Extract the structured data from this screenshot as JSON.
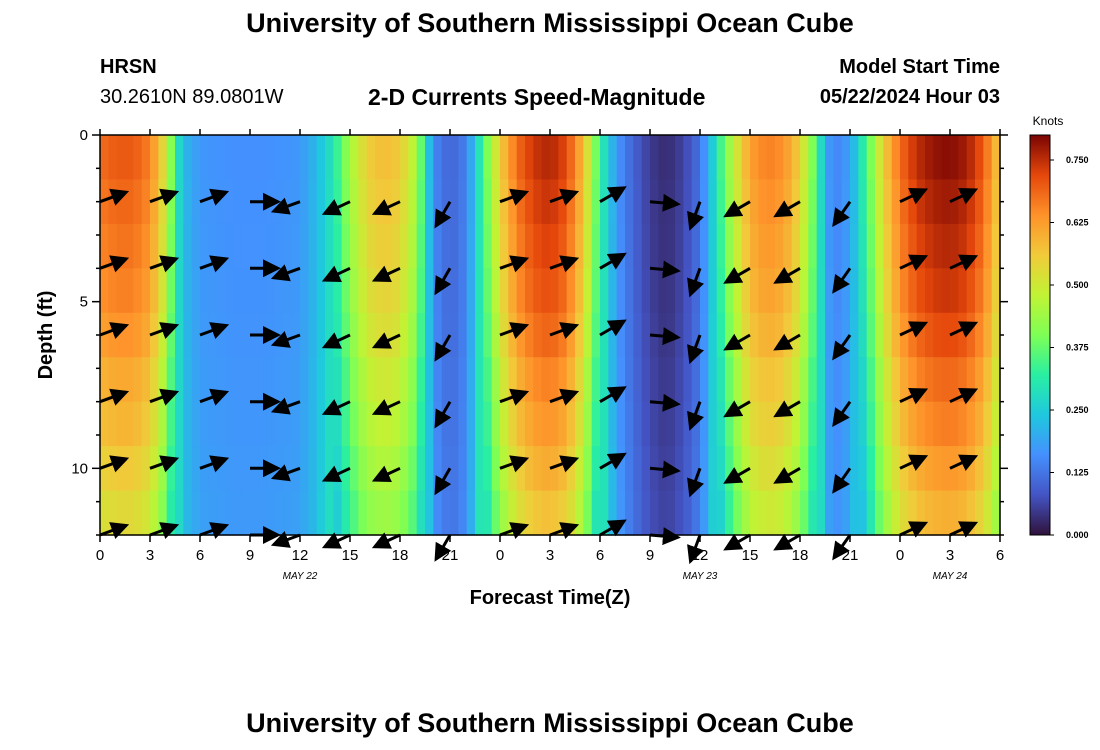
{
  "header": {
    "title": "University of Southern Mississippi Ocean Cube",
    "station": "HRSN",
    "coords": "30.2610N  89.0801W",
    "model_start_label": "Model Start Time",
    "model_start_value": "05/22/2024 Hour 03"
  },
  "footer": {
    "title": "University of Southern Mississippi Ocean Cube"
  },
  "chart_data": {
    "type": "heatmap",
    "title": "2-D Currents Speed-Magnitude",
    "xlabel": "Forecast Time(Z)",
    "ylabel": "Depth (ft)",
    "x_range_hours": [
      0,
      54
    ],
    "ylim": [
      0,
      12
    ],
    "x_ticks": [
      {
        "h": 0,
        "label": "0"
      },
      {
        "h": 3,
        "label": "3"
      },
      {
        "h": 6,
        "label": "6"
      },
      {
        "h": 9,
        "label": "9"
      },
      {
        "h": 12,
        "label": "12"
      },
      {
        "h": 15,
        "label": "15"
      },
      {
        "h": 18,
        "label": "18"
      },
      {
        "h": 21,
        "label": "21"
      },
      {
        "h": 24,
        "label": "0"
      },
      {
        "h": 27,
        "label": "3"
      },
      {
        "h": 30,
        "label": "6"
      },
      {
        "h": 33,
        "label": "9"
      },
      {
        "h": 36,
        "label": "12"
      },
      {
        "h": 39,
        "label": "15"
      },
      {
        "h": 42,
        "label": "18"
      },
      {
        "h": 45,
        "label": "21"
      },
      {
        "h": 48,
        "label": "0"
      },
      {
        "h": 51,
        "label": "3"
      },
      {
        "h": 54,
        "label": "6"
      }
    ],
    "date_labels": [
      {
        "h": 12,
        "label": "MAY 22"
      },
      {
        "h": 36,
        "label": "MAY 23"
      },
      {
        "h": 51,
        "label": "MAY 24"
      }
    ],
    "y_ticks": [
      {
        "v": 0,
        "label": "0"
      },
      {
        "v": 5,
        "label": "5"
      },
      {
        "v": 10,
        "label": "10"
      }
    ],
    "colorbar": {
      "unit": "Knots",
      "min": 0.0,
      "max": 0.8,
      "ticks": [
        "0.000",
        "0.125",
        "0.250",
        "0.375",
        "0.500",
        "0.625",
        "0.750"
      ]
    },
    "speed_time_series": {
      "hours": [
        0,
        1,
        2,
        3,
        4,
        4.5,
        5,
        6,
        8,
        10,
        12,
        13,
        14,
        15,
        16,
        17,
        18,
        19,
        19.5,
        20,
        21,
        22,
        23,
        24,
        25,
        26,
        27,
        28,
        29,
        30,
        31,
        32,
        33,
        34,
        35,
        36,
        36.5,
        37,
        38,
        39,
        40,
        41,
        42,
        43,
        43.5,
        44,
        45,
        46,
        47,
        48,
        49,
        50,
        51,
        52,
        53,
        54
      ],
      "surface_knots": [
        0.68,
        0.7,
        0.7,
        0.66,
        0.5,
        0.32,
        0.22,
        0.17,
        0.16,
        0.16,
        0.17,
        0.22,
        0.3,
        0.44,
        0.55,
        0.58,
        0.56,
        0.45,
        0.3,
        0.15,
        0.1,
        0.14,
        0.35,
        0.55,
        0.68,
        0.74,
        0.76,
        0.72,
        0.58,
        0.33,
        0.17,
        0.1,
        0.05,
        0.03,
        0.06,
        0.12,
        0.2,
        0.3,
        0.48,
        0.62,
        0.66,
        0.64,
        0.55,
        0.35,
        0.2,
        0.14,
        0.18,
        0.35,
        0.55,
        0.68,
        0.75,
        0.78,
        0.79,
        0.77,
        0.7,
        0.55
      ],
      "depth_attenuation": [
        1.0,
        0.98,
        0.96,
        0.94,
        0.91,
        0.87,
        0.84,
        0.8,
        0.76
      ]
    },
    "vectors": {
      "hours": [
        0,
        3,
        6,
        9,
        12,
        15,
        18,
        21,
        24,
        27,
        30,
        33,
        36,
        39,
        42,
        45,
        48,
        51
      ],
      "depths_ft": [
        2,
        4,
        6,
        8,
        10,
        12
      ],
      "direction_deg": [
        70,
        70,
        70,
        90,
        250,
        245,
        245,
        210,
        70,
        70,
        60,
        95,
        200,
        240,
        240,
        215,
        65,
        65
      ],
      "length_scale": 1.0
    }
  }
}
